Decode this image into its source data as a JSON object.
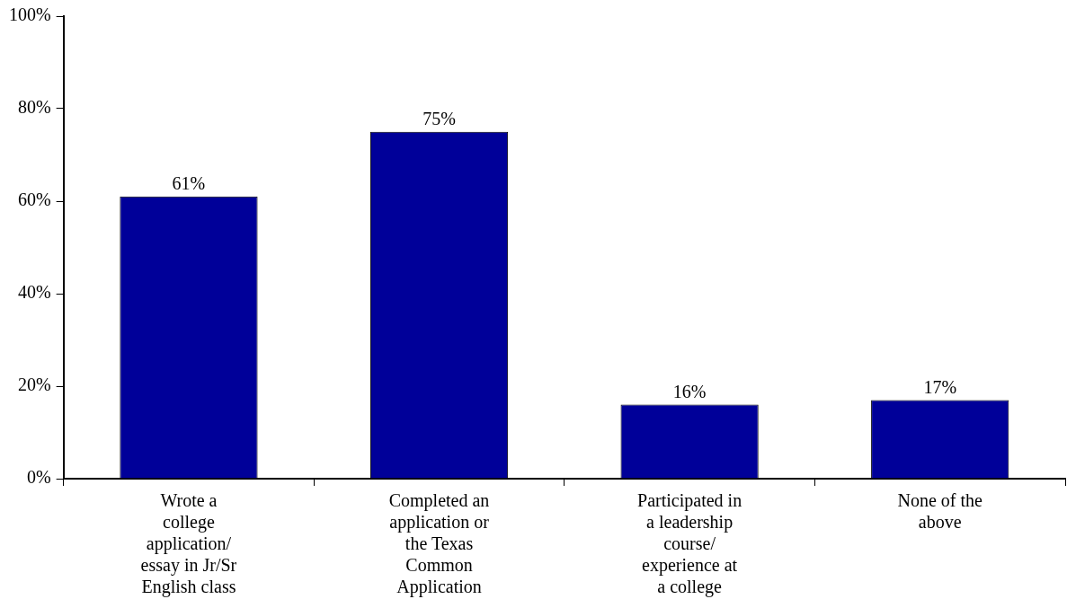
{
  "chart_data": {
    "type": "bar",
    "categories": [
      "Wrote a college application/ essay in Jr/Sr English class",
      "Completed an application or the Texas Common Application",
      "Participated in a leadership course/ experience at a college",
      "None of the above"
    ],
    "values": [
      61,
      75,
      16,
      17
    ],
    "value_labels": [
      "61%",
      "75%",
      "16%",
      "17%"
    ],
    "color": "#000099",
    "ylim": [
      0,
      100
    ],
    "yticks": [
      {
        "value": 0,
        "label": "0%"
      },
      {
        "value": 20,
        "label": "20%"
      },
      {
        "value": 40,
        "label": "40%"
      },
      {
        "value": 60,
        "label": "60%"
      },
      {
        "value": 80,
        "label": "80%"
      },
      {
        "value": 100,
        "label": "100%"
      }
    ],
    "grid": false,
    "legend": false
  }
}
